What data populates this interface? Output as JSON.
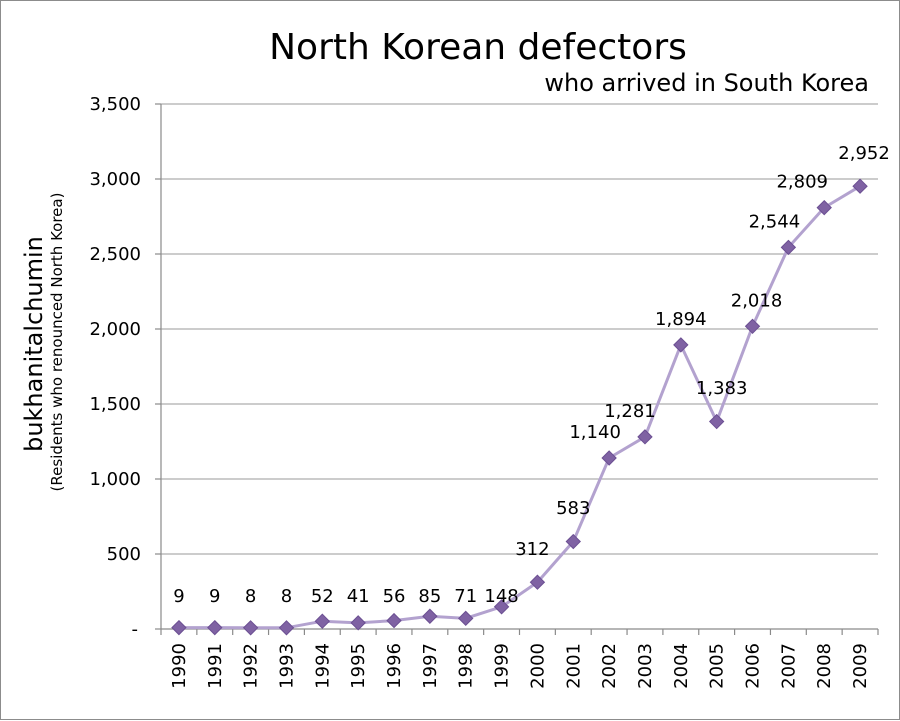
{
  "chart_data": {
    "type": "line",
    "title": "North Korean defectors",
    "subtitle": "who arrived in South Korea",
    "ylabel": "bukhanitalchumin",
    "ylabel_sub": "(Residents who renounced North Korea)",
    "xlabel": "",
    "categories": [
      "1990",
      "1991",
      "1992",
      "1993",
      "1994",
      "1995",
      "1996",
      "1997",
      "1998",
      "1999",
      "2000",
      "2001",
      "2002",
      "2003",
      "2004",
      "2005",
      "2006",
      "2007",
      "2008",
      "2009"
    ],
    "series": [
      {
        "values": [
          9,
          9,
          8,
          8,
          52,
          41,
          56,
          85,
          71,
          148,
          312,
          583,
          1140,
          1281,
          1894,
          1383,
          2018,
          2544,
          2809,
          2952
        ],
        "labels": [
          "9",
          "9",
          "8",
          "8",
          "52",
          "41",
          "56",
          "85",
          "71",
          "148",
          "312",
          "583",
          "1,140",
          "1,281",
          "1,894",
          "1,383",
          "2,018",
          "2,544",
          "2,809",
          "2,952"
        ]
      }
    ],
    "ylim": [
      0,
      3500
    ],
    "yticks": [
      0,
      500,
      1000,
      1500,
      2000,
      2500,
      3000,
      3500
    ],
    "ytick_labels": [
      "-",
      "500",
      "1,000",
      "1,500",
      "2,000",
      "2,500",
      "3,000",
      "3,500"
    ],
    "grid": true,
    "legend": "none",
    "colors": {
      "line": "#b3a2cf",
      "marker": "#7f62a3"
    }
  }
}
